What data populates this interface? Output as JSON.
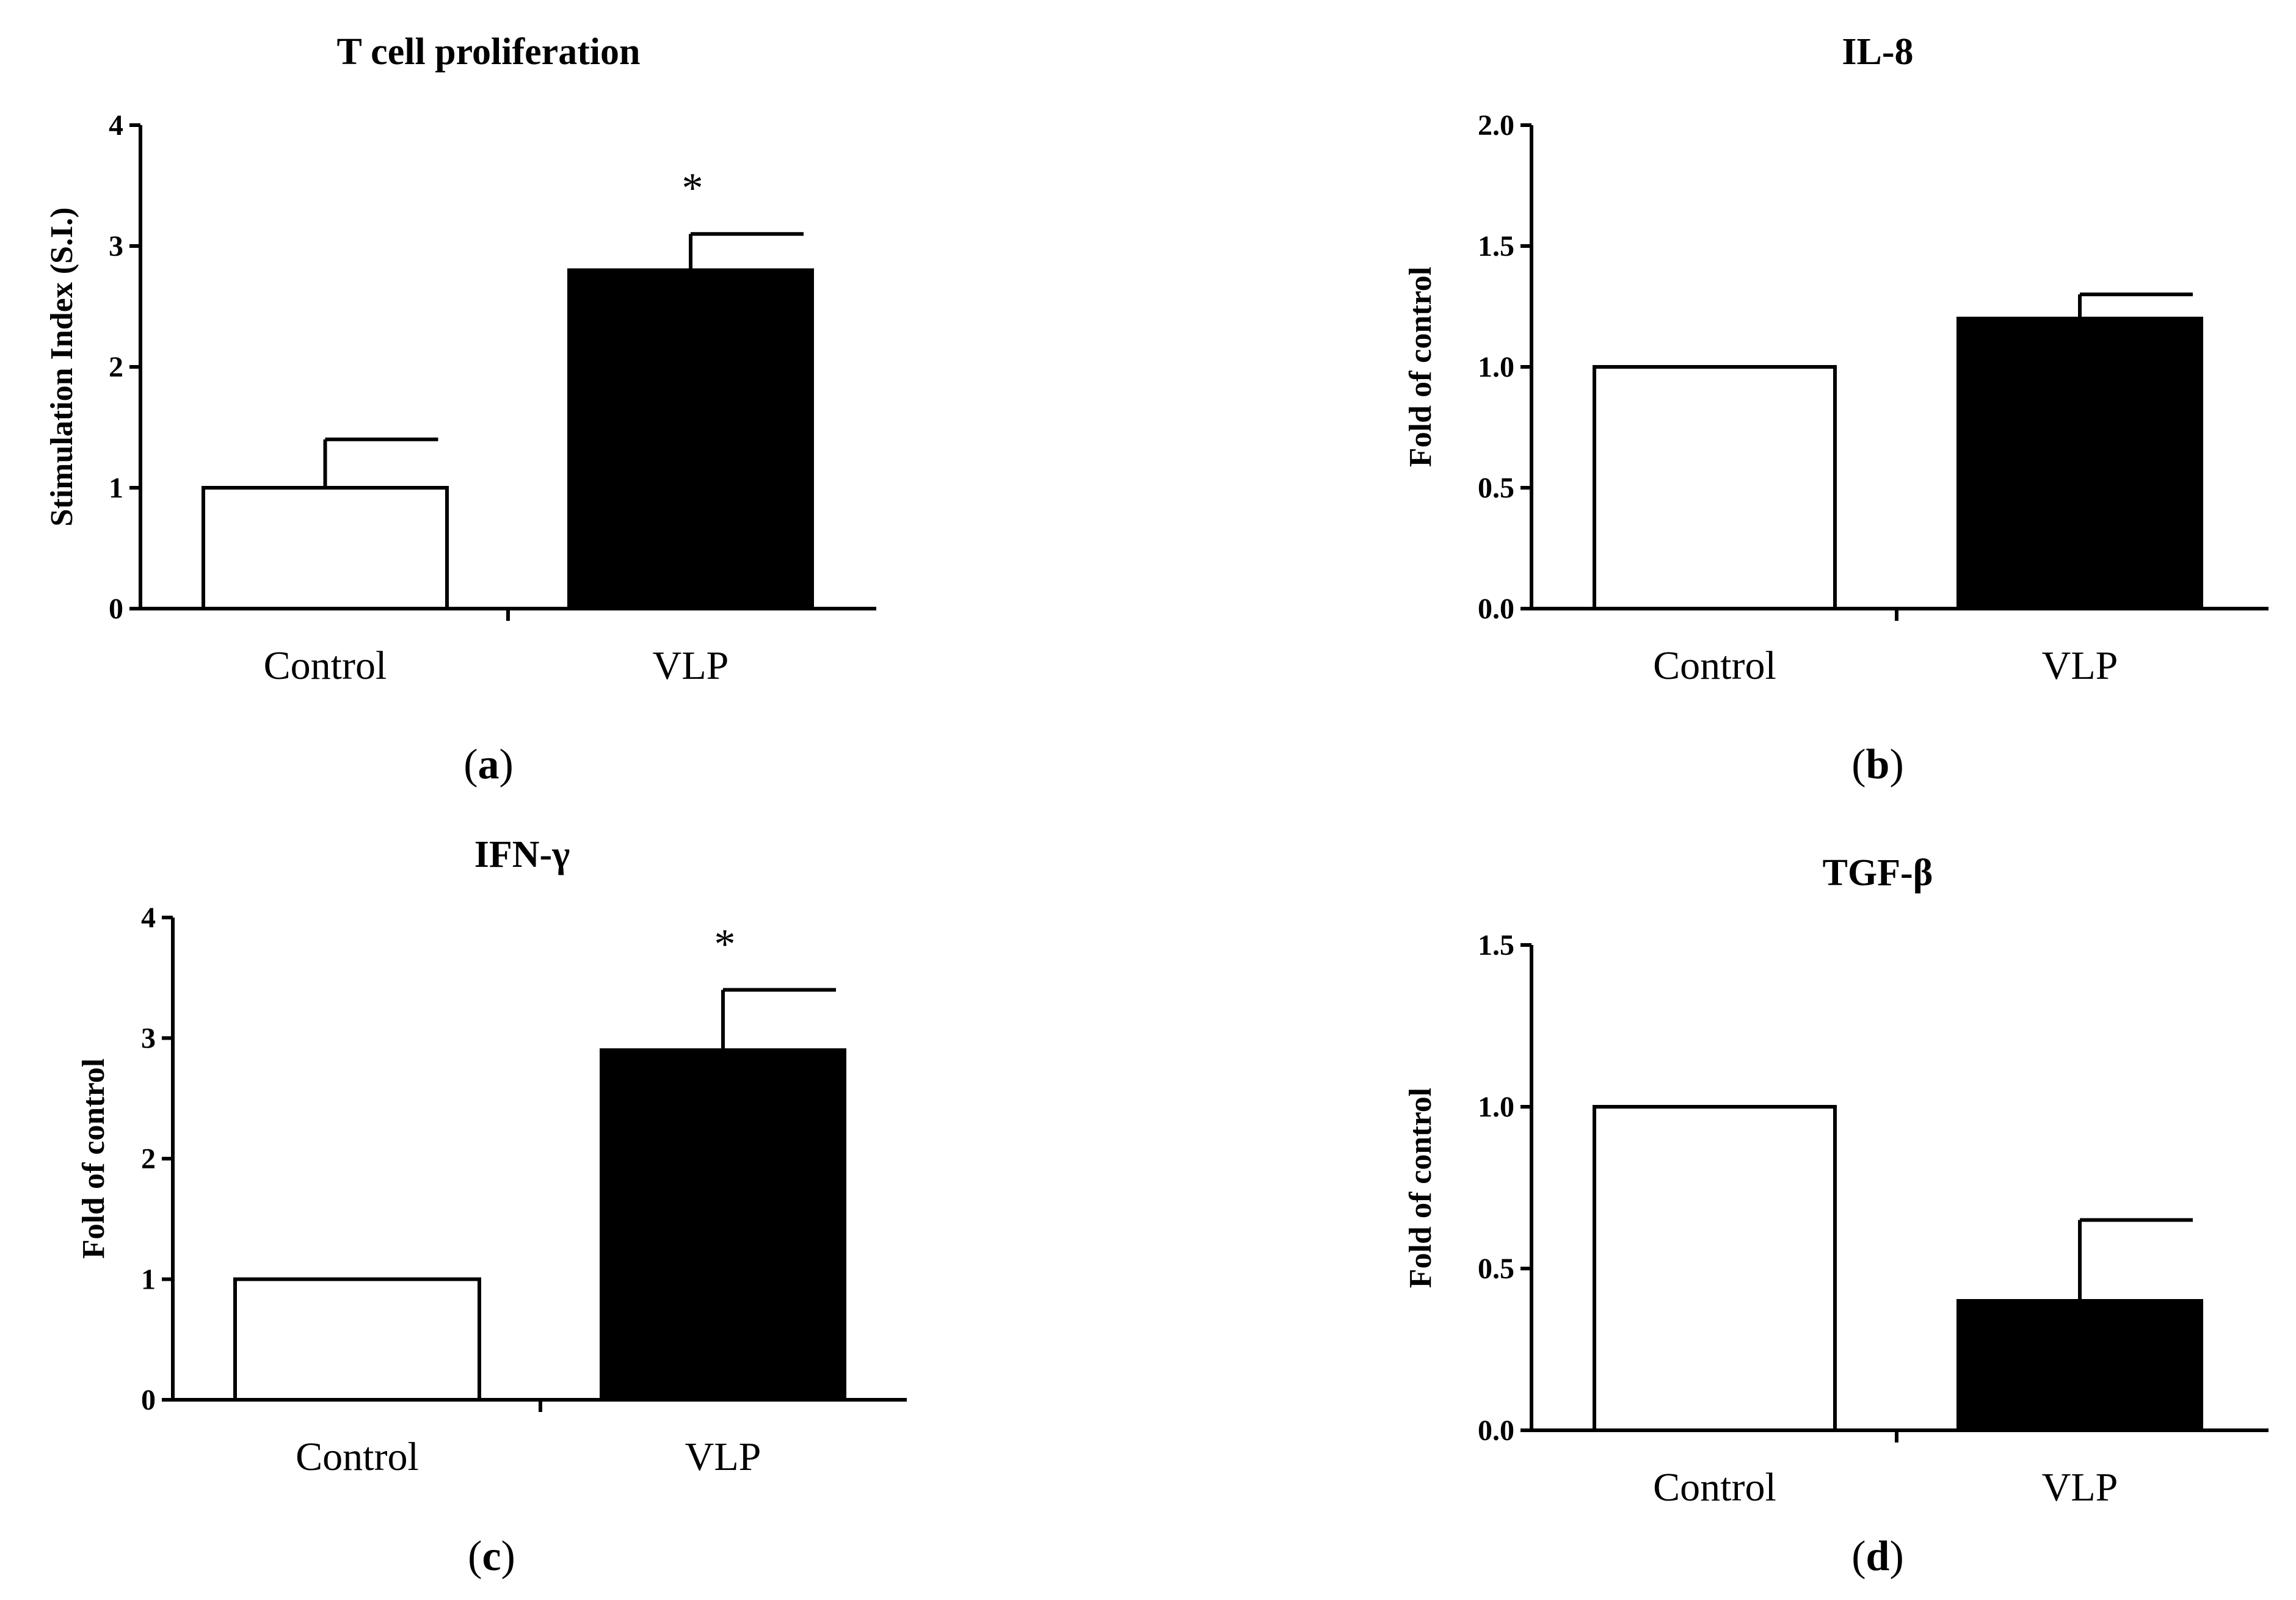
{
  "chart_data": [
    {
      "type": "bar",
      "panel": "a",
      "title": "T cell proliferation",
      "xlabel": "",
      "ylabel": "Stimulation Index (S.I.)",
      "categories": [
        "Control",
        "VLP"
      ],
      "values": [
        1.0,
        2.8
      ],
      "errors": [
        0.4,
        0.3
      ],
      "fills": [
        "#ffffff",
        "#000000"
      ],
      "significance": [
        "",
        "*"
      ],
      "ylim": [
        0,
        4
      ],
      "yticks": [
        0,
        1,
        2,
        3,
        4
      ],
      "ytick_labels": [
        "0",
        "1",
        "2",
        "3",
        "4"
      ]
    },
    {
      "type": "bar",
      "panel": "b",
      "title": "IL-8",
      "xlabel": "",
      "ylabel": "Fold of control",
      "categories": [
        "Control",
        "VLP"
      ],
      "values": [
        1.0,
        1.2
      ],
      "errors": [
        0,
        0.1
      ],
      "fills": [
        "#ffffff",
        "#000000"
      ],
      "significance": [
        "",
        ""
      ],
      "ylim": [
        0,
        2
      ],
      "yticks": [
        0,
        0.5,
        1,
        1.5,
        2
      ],
      "ytick_labels": [
        "0.0",
        "0.5",
        "1.0",
        "1.5",
        "2.0"
      ]
    },
    {
      "type": "bar",
      "panel": "c",
      "title": "IFN-γ",
      "xlabel": "",
      "ylabel": "Fold of control",
      "categories": [
        "Control",
        "VLP"
      ],
      "values": [
        1.0,
        2.9
      ],
      "errors": [
        0,
        0.5
      ],
      "fills": [
        "#ffffff",
        "#000000"
      ],
      "significance": [
        "",
        "*"
      ],
      "ylim": [
        0,
        4
      ],
      "yticks": [
        0,
        1,
        2,
        3,
        4
      ],
      "ytick_labels": [
        "0",
        "1",
        "2",
        "3",
        "4"
      ]
    },
    {
      "type": "bar",
      "panel": "d",
      "title": "TGF-β",
      "xlabel": "",
      "ylabel": "Fold of control",
      "categories": [
        "Control",
        "VLP"
      ],
      "values": [
        1.0,
        0.4
      ],
      "errors": [
        0,
        0.25
      ],
      "fills": [
        "#ffffff",
        "#000000"
      ],
      "significance": [
        "",
        ""
      ],
      "ylim": [
        0,
        1.5
      ],
      "yticks": [
        0,
        0.5,
        1,
        1.5
      ],
      "ytick_labels": [
        "0.0",
        "0.5",
        "1.0",
        "1.5"
      ]
    }
  ]
}
